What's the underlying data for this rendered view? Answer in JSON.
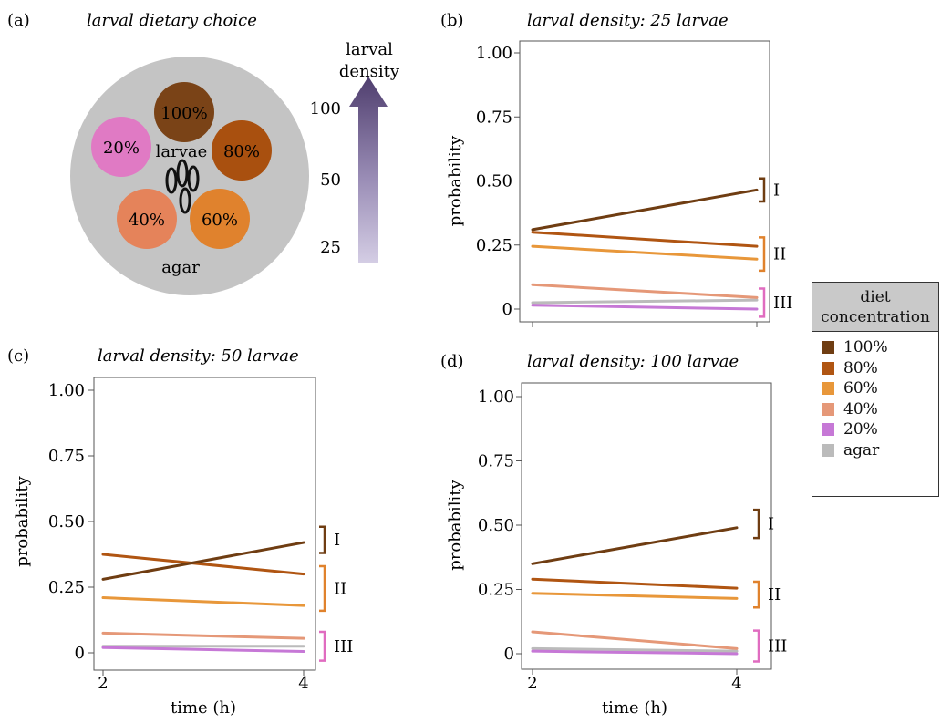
{
  "panel_a": {
    "label": "(a)",
    "title": "larval dietary choice",
    "wells": [
      {
        "text": "100%",
        "color": "#7a4317"
      },
      {
        "text": "80%",
        "color": "#a9500f"
      },
      {
        "text": "60%",
        "color": "#e0822d"
      },
      {
        "text": "40%",
        "color": "#e5835a"
      },
      {
        "text": "20%",
        "color": "#e07ac4"
      }
    ],
    "larvae_label": "larvae",
    "agar_label": "agar",
    "density_title_1": "larval",
    "density_title_2": "density",
    "density_ticks": [
      "100",
      "50",
      "25"
    ]
  },
  "legend": {
    "title_1": "diet",
    "title_2": "concentration",
    "items": [
      {
        "label": "100%",
        "color": "#6f3d12"
      },
      {
        "label": "80%",
        "color": "#b05512"
      },
      {
        "label": "60%",
        "color": "#e8973a"
      },
      {
        "label": "40%",
        "color": "#e59878"
      },
      {
        "label": "20%",
        "color": "#c678d6"
      },
      {
        "label": "agar",
        "color": "#bbbbbb"
      }
    ]
  },
  "chart_data": [
    {
      "panel": "(b)",
      "type": "line",
      "title": "larval density: 25 larvae",
      "ylabel": "probability",
      "xlabel": "",
      "x": [
        2,
        4
      ],
      "ylim": [
        0,
        1
      ],
      "yticks": [
        "1.00",
        "0.75",
        "0.50",
        "0.25",
        "0"
      ],
      "xticks": [],
      "series": [
        {
          "name": "100%",
          "values": [
            0.31,
            0.465
          ]
        },
        {
          "name": "80%",
          "values": [
            0.3,
            0.245
          ]
        },
        {
          "name": "60%",
          "values": [
            0.245,
            0.195
          ]
        },
        {
          "name": "40%",
          "values": [
            0.095,
            0.045
          ]
        },
        {
          "name": "20%",
          "values": [
            0.015,
            0.0
          ]
        },
        {
          "name": "agar",
          "values": [
            0.025,
            0.035
          ]
        }
      ],
      "groups": [
        {
          "label": "I",
          "range": [
            0.42,
            0.51
          ],
          "color": "#6f3d12"
        },
        {
          "label": "II",
          "range": [
            0.15,
            0.28
          ],
          "color": "#e0822d"
        },
        {
          "label": "III",
          "range": [
            -0.03,
            0.08
          ],
          "color": "#e06cc0"
        }
      ]
    },
    {
      "panel": "(c)",
      "type": "line",
      "title": "larval density: 50 larvae",
      "ylabel": "probability",
      "xlabel": "time (h)",
      "x": [
        2,
        4
      ],
      "ylim": [
        0,
        1
      ],
      "yticks": [
        "1.00",
        "0.75",
        "0.50",
        "0.25",
        "0"
      ],
      "xticks": [
        "2",
        "4"
      ],
      "series": [
        {
          "name": "100%",
          "values": [
            0.28,
            0.42
          ]
        },
        {
          "name": "80%",
          "values": [
            0.375,
            0.3
          ]
        },
        {
          "name": "60%",
          "values": [
            0.21,
            0.18
          ]
        },
        {
          "name": "40%",
          "values": [
            0.075,
            0.055
          ]
        },
        {
          "name": "20%",
          "values": [
            0.02,
            0.005
          ]
        },
        {
          "name": "agar",
          "values": [
            0.025,
            0.025
          ]
        }
      ],
      "groups": [
        {
          "label": "I",
          "range": [
            0.38,
            0.48
          ],
          "color": "#6f3d12"
        },
        {
          "label": "II",
          "range": [
            0.16,
            0.33
          ],
          "color": "#e0822d"
        },
        {
          "label": "III",
          "range": [
            -0.03,
            0.08
          ],
          "color": "#e06cc0"
        }
      ]
    },
    {
      "panel": "(d)",
      "type": "line",
      "title": "larval density: 100 larvae",
      "ylabel": "probability",
      "xlabel": "time (h)",
      "x": [
        2,
        4
      ],
      "ylim": [
        0,
        1
      ],
      "yticks": [
        "1.00",
        "0.75",
        "0.50",
        "0.25",
        "0"
      ],
      "xticks": [
        "2",
        "4"
      ],
      "series": [
        {
          "name": "100%",
          "values": [
            0.35,
            0.49
          ]
        },
        {
          "name": "80%",
          "values": [
            0.29,
            0.255
          ]
        },
        {
          "name": "60%",
          "values": [
            0.235,
            0.215
          ]
        },
        {
          "name": "40%",
          "values": [
            0.085,
            0.02
          ]
        },
        {
          "name": "20%",
          "values": [
            0.01,
            0.0
          ]
        },
        {
          "name": "agar",
          "values": [
            0.02,
            0.01
          ]
        }
      ],
      "groups": [
        {
          "label": "I",
          "range": [
            0.45,
            0.56
          ],
          "color": "#6f3d12"
        },
        {
          "label": "II",
          "range": [
            0.18,
            0.28
          ],
          "color": "#e0822d"
        },
        {
          "label": "III",
          "range": [
            -0.03,
            0.09
          ],
          "color": "#e06cc0"
        }
      ]
    }
  ]
}
